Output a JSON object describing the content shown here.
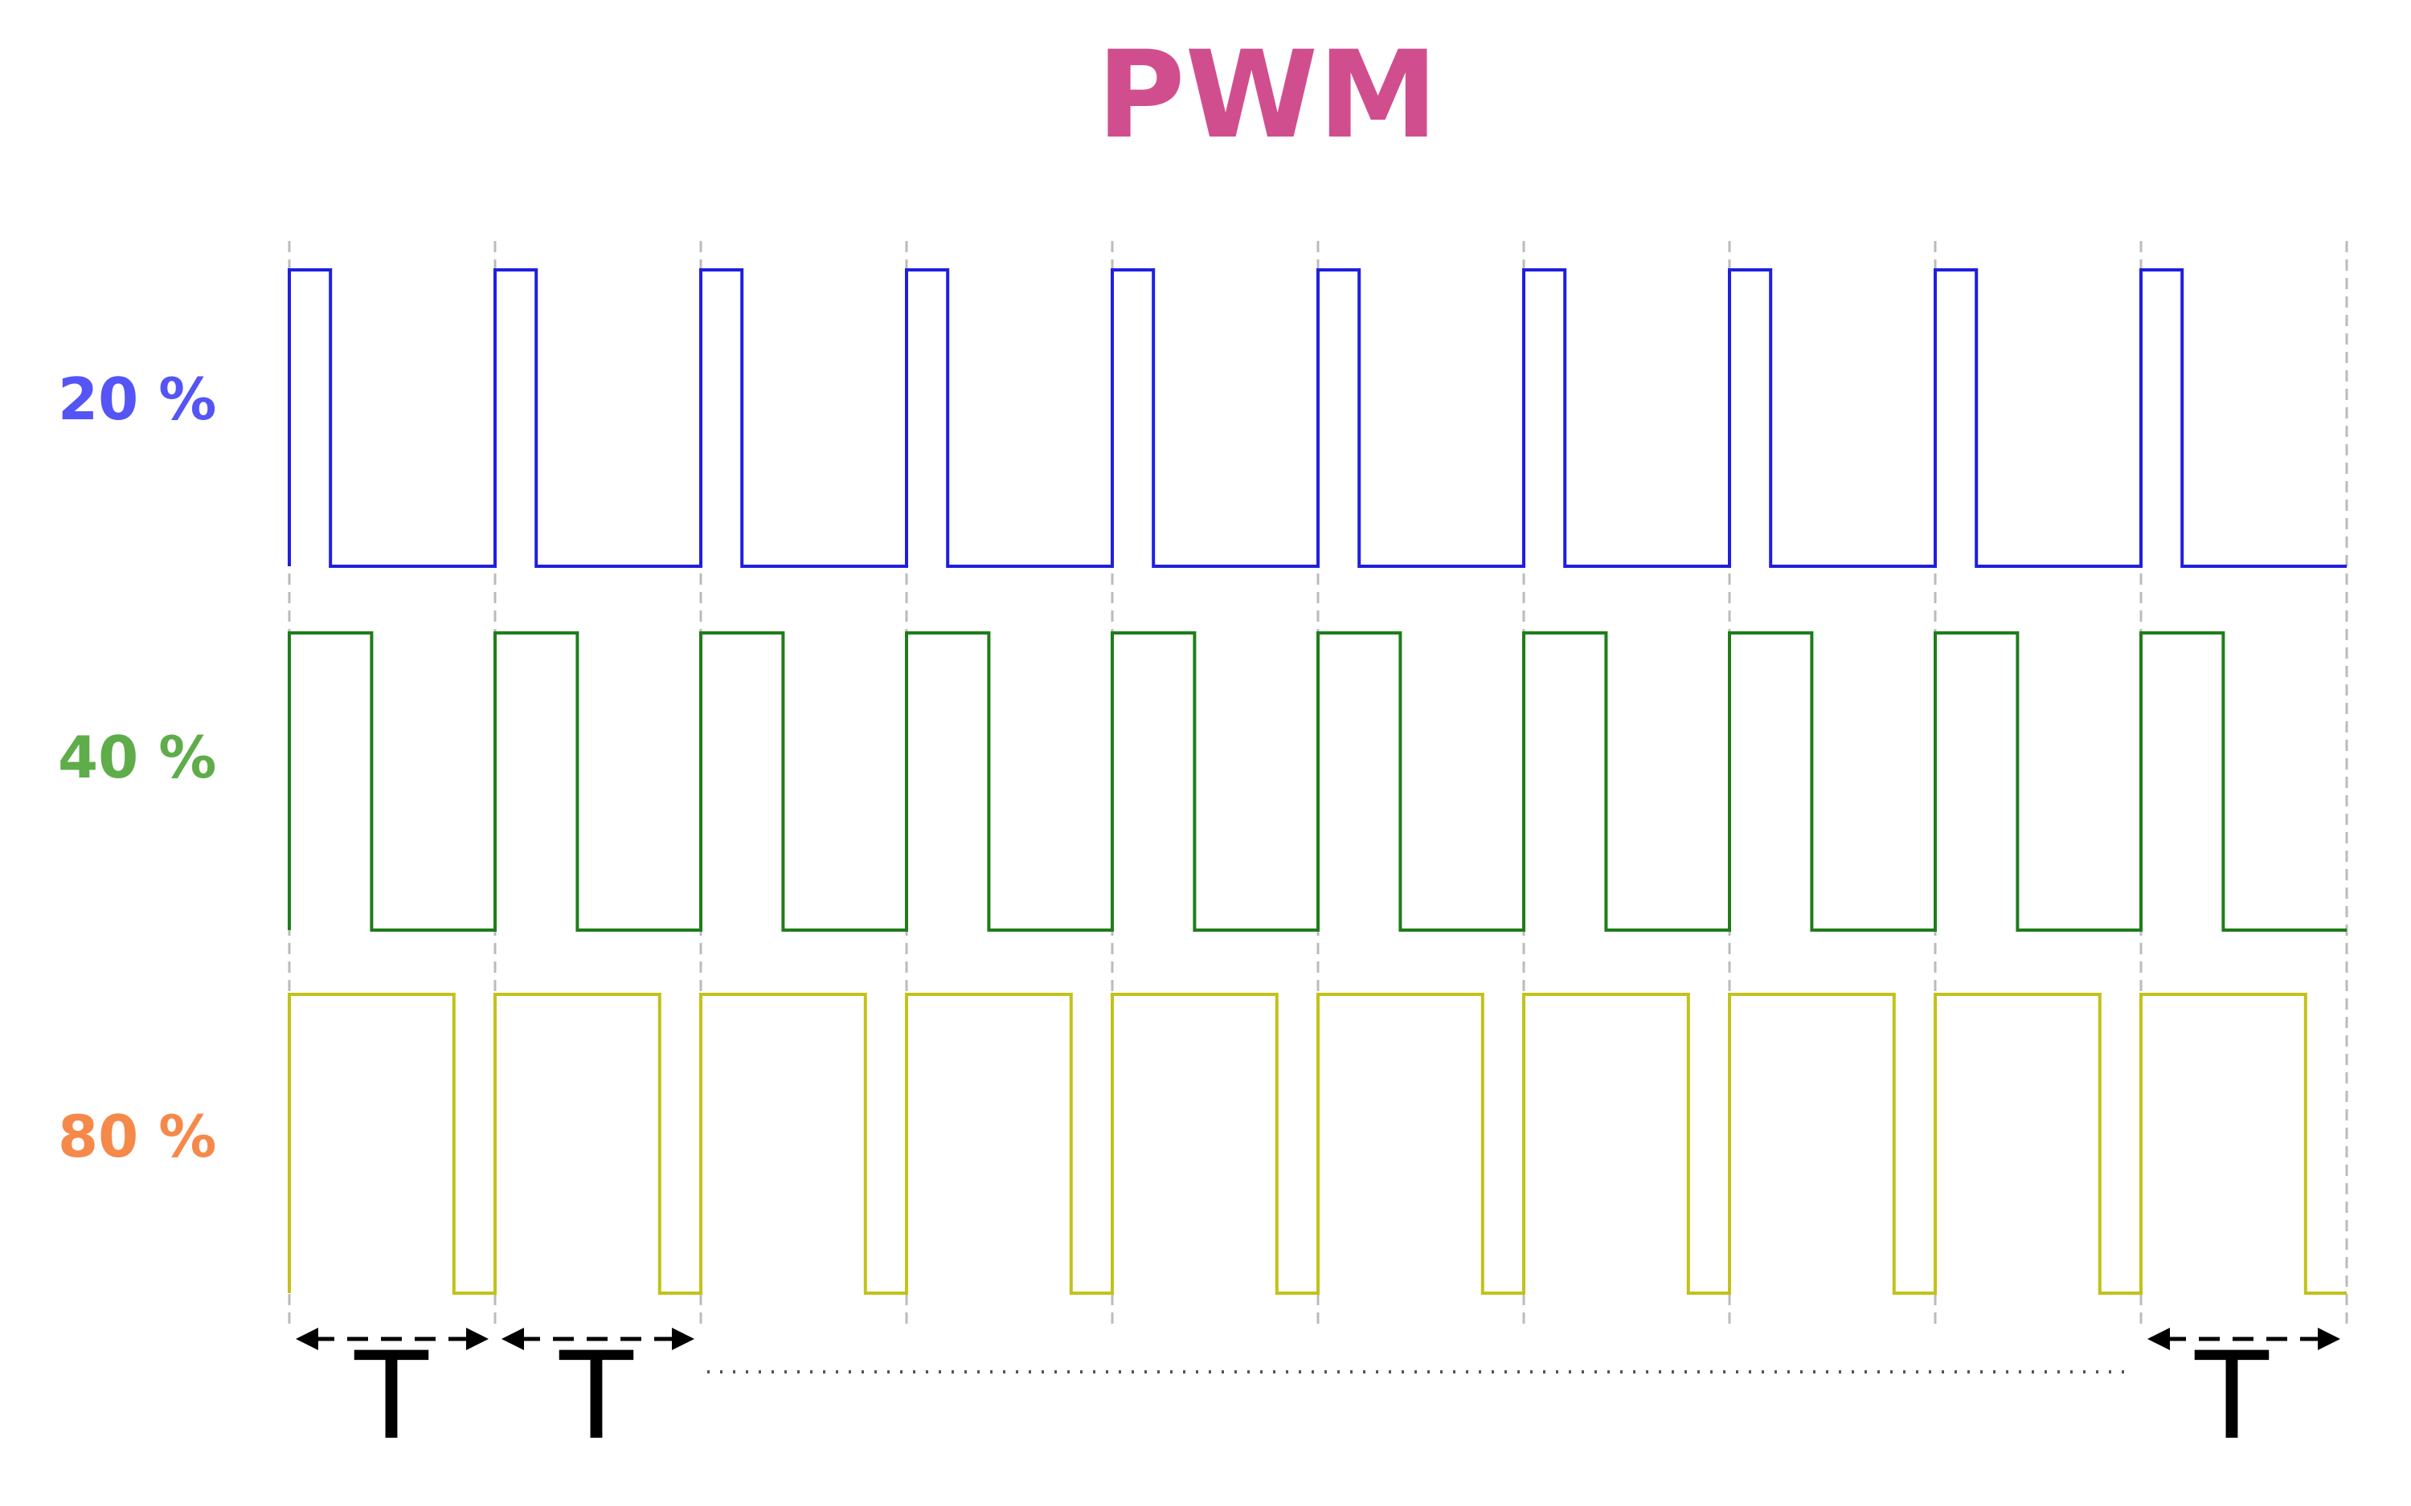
{
  "title": "PWM",
  "colors": {
    "title": "#d14e8e",
    "grid": "#bbbbbb",
    "arrow": "#000000"
  },
  "diagram": {
    "periods": 10,
    "signals": [
      {
        "label": "20 %",
        "duty": 0.2,
        "label_color": "#5555f5",
        "line_color": "#1f1fe0"
      },
      {
        "label": "40 %",
        "duty": 0.4,
        "label_color": "#5fad4a",
        "line_color": "#1e7d1a"
      },
      {
        "label": "80 %",
        "duty": 0.8,
        "label_color": "#f5894a",
        "line_color": "#c2c21a"
      }
    ],
    "period_labels": [
      "T",
      "T",
      "T"
    ],
    "ellipsis": "......."
  }
}
